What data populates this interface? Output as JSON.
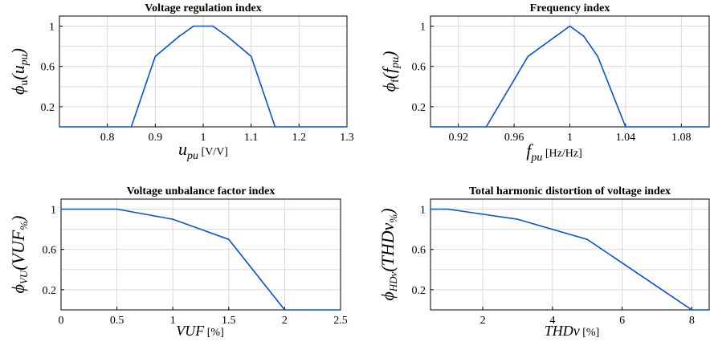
{
  "chart_data": [
    {
      "type": "line",
      "title": "Voltage regulation index",
      "ylabel": "ϕu(upu)",
      "xlabel": "upu [V/V]",
      "xlim": [
        0.7,
        1.3
      ],
      "ylim": [
        0,
        1.1
      ],
      "xticks": [
        0.8,
        0.9,
        1,
        1.1,
        1.2,
        1.3
      ],
      "yticks": [
        0.2,
        0.6,
        1
      ],
      "grid": true,
      "color": "#0a4fd6",
      "x": [
        0.7,
        0.85,
        0.9,
        0.95,
        0.98,
        1.02,
        1.05,
        1.1,
        1.15,
        1.3
      ],
      "y": [
        0,
        0,
        0.7,
        0.9,
        1,
        1,
        0.9,
        0.7,
        0,
        0
      ]
    },
    {
      "type": "line",
      "title": "Frequency index",
      "ylabel": "ϕf(fpu)",
      "xlabel": "fpu [Hz/Hz]",
      "xlim": [
        0.9,
        1.1
      ],
      "ylim": [
        0,
        1.1
      ],
      "xticks": [
        0.92,
        0.96,
        1,
        1.04,
        1.08
      ],
      "yticks": [
        0.2,
        0.6,
        1
      ],
      "grid": true,
      "color": "#0a4fd6",
      "x": [
        0.9,
        0.94,
        0.97,
        1,
        1.01,
        1.02,
        1.04,
        1.1
      ],
      "y": [
        0,
        0,
        0.7,
        1,
        0.9,
        0.7,
        0,
        0
      ]
    },
    {
      "type": "line",
      "title": "Voltage unbalance factor index",
      "ylabel": "ϕVU(VUF%)",
      "xlabel": "VUF [%]",
      "xlim": [
        0,
        2.5
      ],
      "ylim": [
        0,
        1.1
      ],
      "xticks": [
        0,
        0.5,
        1,
        1.5,
        2,
        2.5
      ],
      "yticks": [
        0.2,
        0.6,
        1
      ],
      "grid": true,
      "color": "#0a4fd6",
      "x": [
        0,
        0.5,
        1,
        1.5,
        2,
        2.5
      ],
      "y": [
        1,
        1,
        0.9,
        0.7,
        0,
        0
      ]
    },
    {
      "type": "line",
      "title": "Total harmonic distortion of voltage index",
      "ylabel": "ϕHDv(THDv%)",
      "xlabel": "THDv [%]",
      "xlim": [
        0.5,
        8.5
      ],
      "ylim": [
        0,
        1.1
      ],
      "xticks": [
        2,
        4,
        6,
        8
      ],
      "yticks": [
        0.2,
        0.6,
        1
      ],
      "grid": true,
      "color": "#0a4fd6",
      "x": [
        0.5,
        1,
        3,
        5,
        8,
        8.5
      ],
      "y": [
        1,
        1,
        0.9,
        0.7,
        0,
        0
      ]
    }
  ]
}
